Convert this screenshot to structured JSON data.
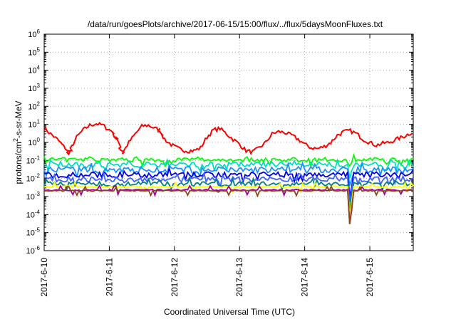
{
  "chart_data": {
    "type": "line",
    "title": "/data/run/goesPlots/archive/2017-06-15/15:00/flux/../flux/5daysMoonFluxes.txt",
    "xlabel": "Coordinated Universal Time (UTC)",
    "ylabel_parts": {
      "base": "protons/cm",
      "sup": "2",
      "rest": "-s-sr-MeV"
    },
    "yscale": "log",
    "ylim_exp": [
      -6,
      6
    ],
    "ytick_base": "10",
    "ytick_exps": [
      "-6",
      "-5",
      "-4",
      "-3",
      "-2",
      "-1",
      "0",
      "1",
      "2",
      "3",
      "4",
      "5",
      "6"
    ],
    "xlim": [
      "2017-06-10T00:00",
      "2017-06-15T16:00"
    ],
    "xticks": [
      "2017-6-10",
      "2017-6-11",
      "2017-6-12",
      "2017-6-13",
      "2017-6-14",
      "2017-6-15"
    ],
    "grid": true,
    "series": [
      {
        "color": "#ff0000",
        "x_days": [
          0,
          0.1,
          0.2,
          0.3,
          0.35,
          0.4,
          0.5,
          0.6,
          0.7,
          0.8,
          0.9,
          1.0,
          1.05,
          1.1,
          1.15,
          1.2,
          1.3,
          1.4,
          1.5,
          1.6,
          1.7,
          1.75,
          1.8,
          1.9,
          2.0,
          2.1,
          2.2,
          2.3,
          2.4,
          2.5,
          2.6,
          2.7,
          2.8,
          2.9,
          3.0,
          3.1,
          3.2,
          3.3,
          3.4,
          3.5,
          3.6,
          3.7,
          3.8,
          3.9,
          4.0,
          4.1,
          4.2,
          4.3,
          4.4,
          4.5,
          4.6,
          4.7,
          4.8,
          4.9,
          5.0,
          5.1,
          5.2,
          5.3,
          5.4,
          5.5,
          5.6,
          5.67
        ],
        "y": [
          6,
          3,
          1.5,
          0.6,
          0.25,
          0.4,
          2,
          5,
          9,
          11,
          9,
          5,
          3,
          1.5,
          0.5,
          0.25,
          1,
          3,
          8,
          9,
          6,
          5,
          2.5,
          1,
          0.6,
          0.4,
          0.35,
          0.35,
          0.5,
          2,
          5,
          6,
          3,
          1.5,
          0.8,
          0.35,
          0.3,
          0.5,
          1,
          3,
          4,
          3.5,
          2.5,
          1.5,
          0.8,
          0.5,
          0.45,
          0.6,
          1,
          2.5,
          4,
          4.5,
          3,
          1.5,
          1,
          0.7,
          0.9,
          1,
          1.5,
          2,
          3,
          4.5
        ]
      },
      {
        "color": "#00ff00",
        "level": 0.11,
        "noise": 0.12,
        "x_days": [
          4.7
        ],
        "dips": [
          0.05
        ]
      },
      {
        "color": "#00e0c0",
        "level": 0.06,
        "noise": 0.14,
        "x_days": [
          4.7
        ],
        "dips": [
          0.01
        ]
      },
      {
        "color": "#1e90ff",
        "level": 0.03,
        "noise": 0.18,
        "x_days": [
          4.7
        ],
        "dips": [
          0.004
        ]
      },
      {
        "color": "#0000e0",
        "level": 0.016,
        "noise": 0.16,
        "x_days": [
          4.7
        ],
        "dips": [
          0.001
        ]
      },
      {
        "color": "#4060ff",
        "level": 0.009,
        "noise": 0.14,
        "x_days": [
          4.7
        ],
        "dips": [
          0.0005
        ]
      },
      {
        "color": "#008080",
        "level": 0.005,
        "noise": 0.12,
        "x_days": [
          4.7
        ],
        "dips": [
          0.0002
        ]
      },
      {
        "color": "#ffff00",
        "level": 0.0035,
        "noise": 0.04,
        "x_days": [
          4.7
        ],
        "dips": [
          8e-05
        ]
      },
      {
        "color": "#a000a0",
        "level": 0.0023,
        "noise": 0.04,
        "x_days": [
          4.7
        ],
        "dips": [
          3e-05
        ]
      },
      {
        "color": "#8b4513",
        "level": 0.0021,
        "noise": 0.03,
        "x_days": [
          4.7
        ],
        "dips": [
          3e-05
        ]
      }
    ]
  }
}
